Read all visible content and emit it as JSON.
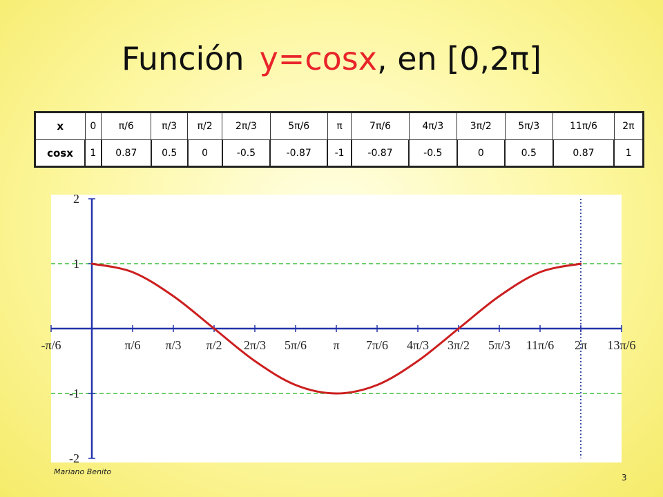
{
  "title": {
    "prefix": "Función",
    "function": "y=cosx",
    "suffix": ", en [0,2π]"
  },
  "table": {
    "row_x_header": "x",
    "row_y_header": "cosx",
    "x": [
      "0",
      "π/6",
      "π/3",
      "π/2",
      "2π/3",
      "5π/6",
      "π",
      "7π/6",
      "4π/3",
      "3π/2",
      "5π/3",
      "11π/6",
      "2π"
    ],
    "y": [
      "1",
      "0.87",
      "0.5",
      "0",
      "-0.5",
      "-0.87",
      "-1",
      "-0.87",
      "-0.5",
      "0",
      "0.5",
      "0.87",
      "1"
    ]
  },
  "chart_data": {
    "type": "line",
    "xlim": [
      -0.5236,
      6.8068
    ],
    "ylim": [
      -2,
      2
    ],
    "x_unit": "π/6",
    "x_ticks": [
      "-π/6",
      "π/6",
      "π/3",
      "π/2",
      "2π/3",
      "5π/6",
      "π",
      "7π/6",
      "4π/3",
      "3π/2",
      "5π/3",
      "11π/6",
      "2π",
      "13π/6"
    ],
    "x_tick_multiples": [
      -1,
      1,
      2,
      3,
      4,
      5,
      6,
      7,
      8,
      9,
      10,
      11,
      12,
      13
    ],
    "y_ticks": [
      "2",
      "1",
      "-1",
      "-2"
    ],
    "y_tick_values": [
      2,
      1,
      -1,
      -2
    ],
    "series": [
      {
        "x": [
          0,
          0.5236,
          1.0472,
          1.5708,
          2.0944,
          2.618,
          3.1416,
          3.6652,
          4.1888,
          4.7124,
          5.236,
          5.7596,
          6.2832
        ],
        "y": [
          1,
          0.87,
          0.5,
          0,
          -0.5,
          -0.87,
          -1,
          -0.87,
          -0.5,
          0,
          0.5,
          0.87,
          1
        ],
        "color": "#cc1f1f"
      }
    ],
    "reference_lines": {
      "horizontal": [
        1,
        -1
      ],
      "vertical": [
        6.2832
      ],
      "color": "#3fbf3f"
    },
    "grid": false,
    "xlabel": "",
    "ylabel": ""
  },
  "footer": {
    "author": "Mariano Benito",
    "page": "3"
  },
  "colors": {
    "curve": "#cc1f1f",
    "axes": "#2233aa",
    "dashed_lines": "#3fbf3f",
    "title_function": "#e8242b"
  }
}
